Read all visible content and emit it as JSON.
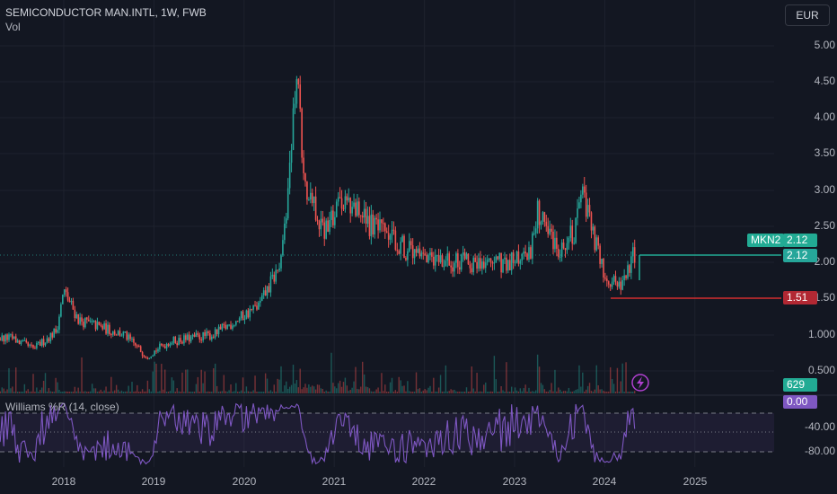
{
  "header": {
    "symbol": "SEMICONDUCTOR MAN.INTL, 1W, FWB",
    "volume_label": "Vol",
    "indicator_label": "Williams %R (14, close)"
  },
  "currency_button": "EUR",
  "price_axis": [
    "5.00",
    "4.50",
    "4.00",
    "3.50",
    "3.00",
    "2.50",
    "2.00",
    "1.50",
    "1.000",
    "0.500"
  ],
  "indicator_axis": [
    "-40.00",
    "-80.00"
  ],
  "time_axis": [
    "2018",
    "2019",
    "2020",
    "2021",
    "2022",
    "2023",
    "2024",
    "2025"
  ],
  "badges": {
    "symbol_tag": "MKN2",
    "last_price": "2.12",
    "price_line": "2.12",
    "low_price": "1.51",
    "volume_value": "629",
    "wr_value": "0.00"
  },
  "colors": {
    "up": "#26a69a",
    "down": "#ef5350",
    "indicator": "#7e57c2",
    "background": "#131722"
  },
  "chart_data": {
    "type": "candlestick",
    "symbol": "SEMICONDUCTOR MAN.INTL",
    "interval": "1W",
    "exchange": "FWB",
    "currency": "EUR",
    "y_range": [
      0.35,
      5.3
    ],
    "x_range": [
      "2017-06",
      "2025-08"
    ],
    "price_path": [
      {
        "date": "2017-06",
        "close": 0.95
      },
      {
        "date": "2017-09",
        "close": 0.8
      },
      {
        "date": "2017-12",
        "close": 1.05
      },
      {
        "date": "2018-01",
        "close": 1.6
      },
      {
        "date": "2018-03",
        "close": 1.2
      },
      {
        "date": "2018-06",
        "close": 1.1
      },
      {
        "date": "2018-09",
        "close": 1.0
      },
      {
        "date": "2018-12",
        "close": 0.7
      },
      {
        "date": "2019-03",
        "close": 0.9
      },
      {
        "date": "2019-06",
        "close": 0.95
      },
      {
        "date": "2019-09",
        "close": 1.0
      },
      {
        "date": "2019-12",
        "close": 1.2
      },
      {
        "date": "2020-03",
        "close": 1.4
      },
      {
        "date": "2020-06",
        "close": 2.0
      },
      {
        "date": "2020-08",
        "close": 4.6
      },
      {
        "date": "2020-09",
        "close": 3.0
      },
      {
        "date": "2020-12",
        "close": 2.4
      },
      {
        "date": "2021-02",
        "close": 2.9
      },
      {
        "date": "2021-06",
        "close": 2.5
      },
      {
        "date": "2021-09",
        "close": 2.3
      },
      {
        "date": "2022-01",
        "close": 2.0
      },
      {
        "date": "2022-06",
        "close": 2.0
      },
      {
        "date": "2022-12",
        "close": 2.0
      },
      {
        "date": "2023-03",
        "close": 2.1
      },
      {
        "date": "2023-04",
        "close": 2.7
      },
      {
        "date": "2023-07",
        "close": 2.2
      },
      {
        "date": "2023-09",
        "close": 2.4
      },
      {
        "date": "2023-10",
        "close": 2.9
      },
      {
        "date": "2024-01",
        "close": 1.8
      },
      {
        "date": "2024-03",
        "close": 1.7
      },
      {
        "date": "2024-05",
        "close": 2.12
      }
    ],
    "last_price": 2.12,
    "low_line": 1.51,
    "volume_last": 629,
    "indicator": {
      "name": "Williams %R (14, close)",
      "last": 0.0,
      "levels": [
        -20,
        -50,
        -80
      ]
    }
  }
}
